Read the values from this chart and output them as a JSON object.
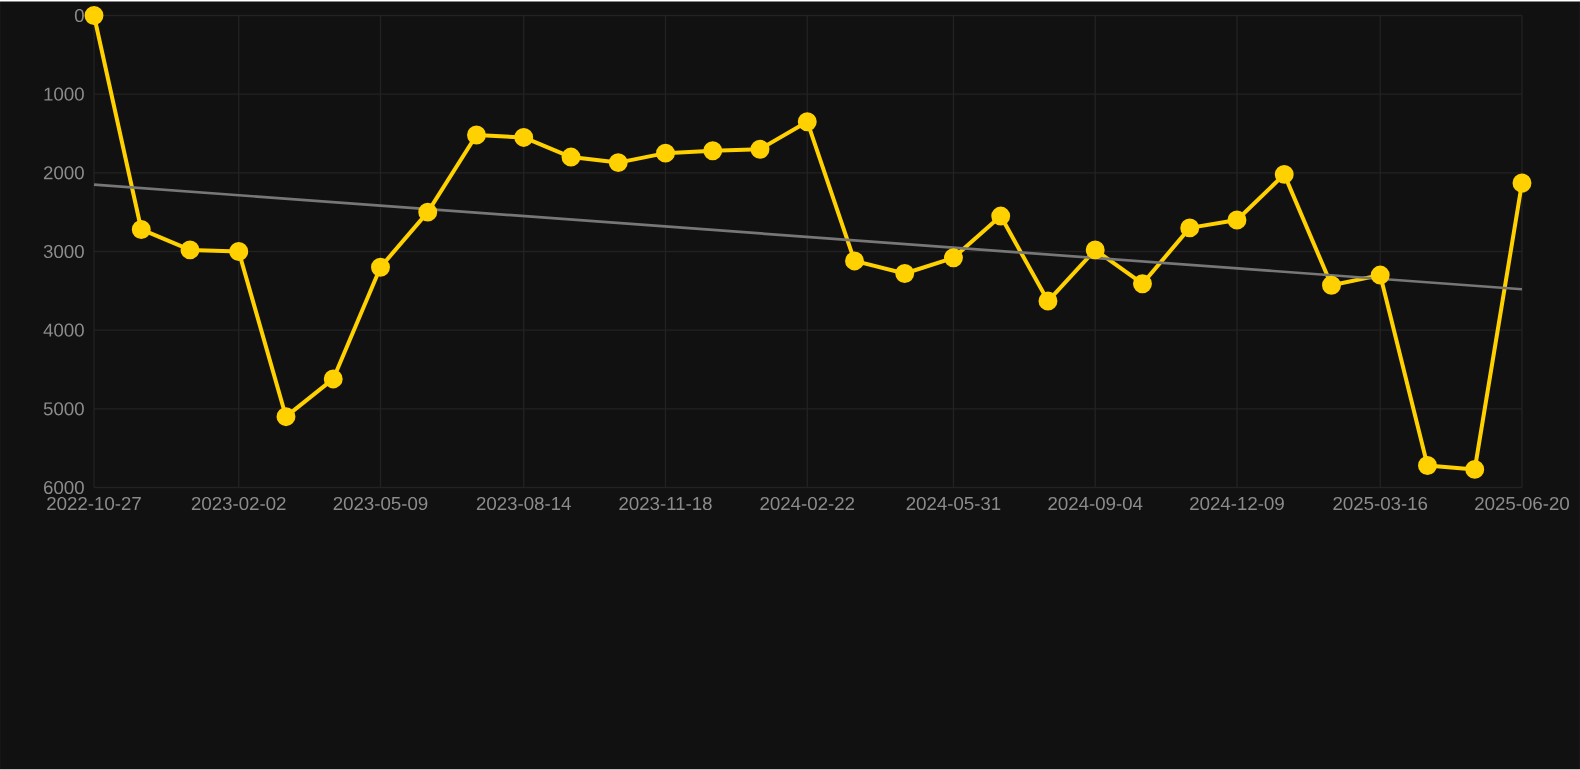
{
  "chart_data": {
    "type": "line",
    "x": [
      "2022-10-27",
      "2022-11-28",
      "2022-12-31",
      "2023-02-02",
      "2023-03-06",
      "2023-04-07",
      "2023-05-09",
      "2023-06-10",
      "2023-07-13",
      "2023-08-14",
      "2023-09-15",
      "2023-10-17",
      "2023-11-18",
      "2023-12-20",
      "2024-01-21",
      "2024-02-22",
      "2024-03-25",
      "2024-04-28",
      "2024-05-31",
      "2024-07-02",
      "2024-08-03",
      "2024-09-04",
      "2024-10-06",
      "2024-11-07",
      "2024-12-09",
      "2025-01-10",
      "2025-02-11",
      "2025-03-16",
      "2025-04-17",
      "2025-05-19",
      "2025-06-20"
    ],
    "series": [
      {
        "color": "#ffd100",
        "values": [
          0,
          2720,
          2980,
          3000,
          5100,
          4620,
          3200,
          2500,
          1520,
          1550,
          1800,
          1870,
          1750,
          1720,
          1700,
          1350,
          3120,
          3280,
          3080,
          2550,
          3630,
          2980,
          3410,
          2700,
          2600,
          2020,
          3430,
          3300,
          5720,
          5770,
          2130
        ]
      },
      {
        "type": "line",
        "color": "#777777",
        "marker": "none",
        "x": [
          "2022-10-27",
          "2025-06-20"
        ],
        "values": [
          2150,
          3480
        ]
      }
    ],
    "xlim": [
      "2022-10-27",
      "2025-06-20"
    ],
    "xticks": [
      "2022-10-27",
      "2023-02-02",
      "2023-05-09",
      "2023-08-14",
      "2023-11-18",
      "2024-02-22",
      "2024-05-31",
      "2024-09-04",
      "2024-12-09",
      "2025-03-16",
      "2025-06-20"
    ],
    "ylim": [
      6000,
      0
    ],
    "yticks": [
      0,
      1000,
      2000,
      3000,
      4000,
      5000,
      6000
    ],
    "grid": true,
    "marker": "circle",
    "line_style": "solid"
  }
}
